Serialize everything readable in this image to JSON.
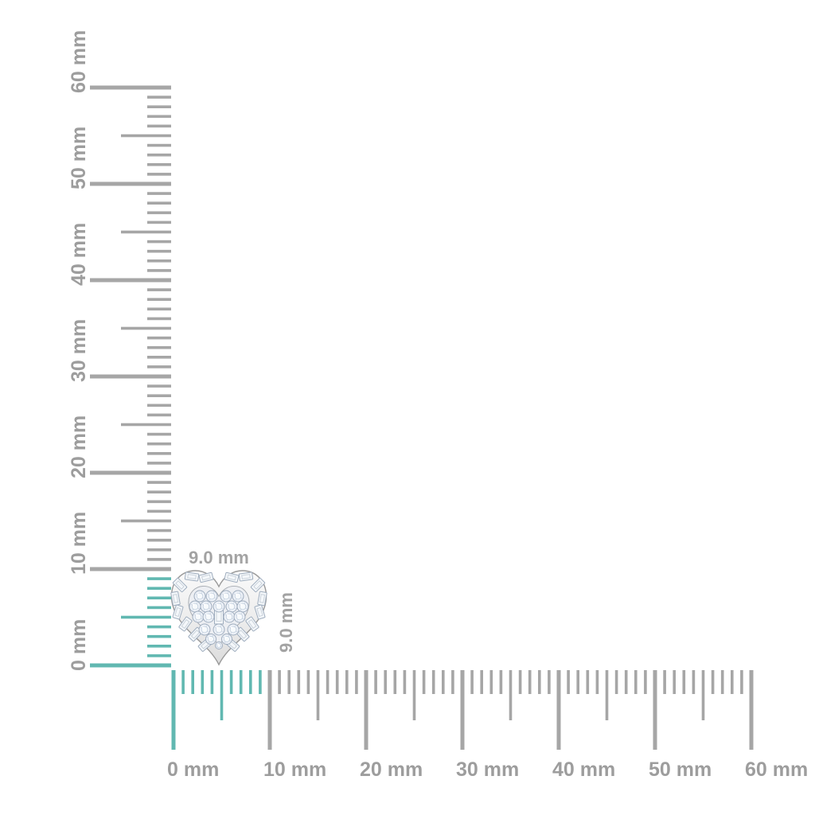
{
  "figure": {
    "description": "heart-shaped pave diamond stud shown against millimeter rulers",
    "background": "#ffffff"
  },
  "rulers": {
    "vertical": {
      "unit": "mm",
      "min_mm": 0,
      "max_mm": 60,
      "major_step_mm": 10,
      "mid_step_mm": 5,
      "minor_step_mm": 1,
      "highlighted_span_mm": 9,
      "labels": [
        "0 mm",
        "10 mm",
        "20 mm",
        "30 mm",
        "40 mm",
        "50 mm",
        "60 mm"
      ]
    },
    "horizontal": {
      "unit": "mm",
      "min_mm": 0,
      "max_mm": 60,
      "major_step_mm": 10,
      "mid_step_mm": 5,
      "minor_step_mm": 1,
      "highlighted_span_mm": 9,
      "labels": [
        "0 mm",
        "10 mm",
        "20 mm",
        "30 mm",
        "40 mm",
        "50 mm",
        "60 mm"
      ]
    }
  },
  "annotations": {
    "width_label": "9.0 mm",
    "height_label": "9.0 mm"
  },
  "item": {
    "description": "heart-shaped diamond cluster stud with baguette halo",
    "width": "9.0 mm",
    "height": "9.0 mm"
  },
  "colors": {
    "background": "#ffffff",
    "highlight_teal": "#61b8b1",
    "tick_gray": "#a6a6a6",
    "label_gray": "#9d9d9d",
    "annotation_gray": "#a3a3a3",
    "metal_outline": "#9a9a9a",
    "metal_light": "#fafafa",
    "metal_shade": "#dcdcdc",
    "inner_metal": "#edeff3",
    "diamond_fill": "#eef2f8",
    "diamond_outline": "#9fadbe",
    "facet_line": "#ccd6e3"
  }
}
